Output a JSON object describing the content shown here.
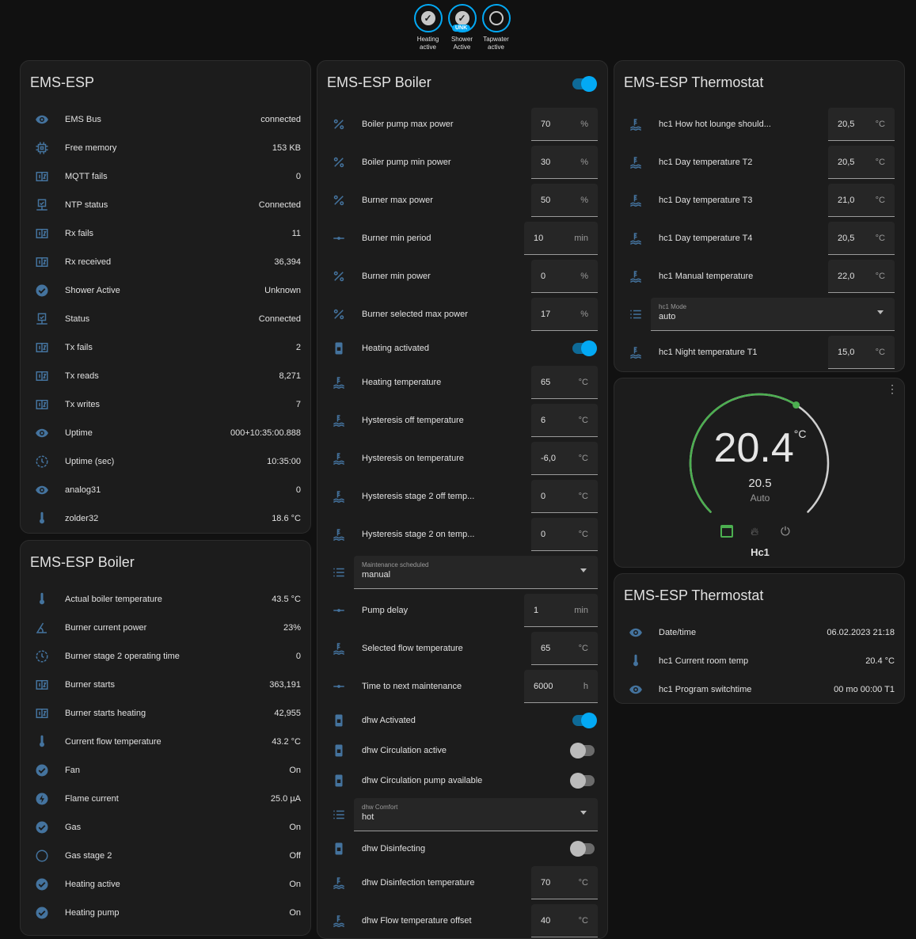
{
  "badges": [
    {
      "label": "Heating active",
      "state": "on"
    },
    {
      "label": "Shower Active",
      "state": "on",
      "tag": "UNK"
    },
    {
      "label": "Tapwater active",
      "state": "off"
    }
  ],
  "colors": {
    "accent": "#03a9f4",
    "icon": "#44739e",
    "thermo": "#4caf50"
  },
  "ems_esp": {
    "title": "EMS-ESP",
    "rows": [
      {
        "icon": "eye",
        "label": "EMS Bus",
        "value": "connected"
      },
      {
        "icon": "chip",
        "label": "Free memory",
        "value": "153 KB"
      },
      {
        "icon": "counter",
        "label": "MQTT fails",
        "value": "0"
      },
      {
        "icon": "monitor",
        "label": "NTP status",
        "value": "Connected"
      },
      {
        "icon": "counter",
        "label": "Rx fails",
        "value": "11"
      },
      {
        "icon": "counter",
        "label": "Rx received",
        "value": "36,394"
      },
      {
        "icon": "check-circle",
        "label": "Shower Active",
        "value": "Unknown"
      },
      {
        "icon": "monitor",
        "label": "Status",
        "value": "Connected"
      },
      {
        "icon": "counter",
        "label": "Tx fails",
        "value": "2"
      },
      {
        "icon": "counter",
        "label": "Tx reads",
        "value": "8,271"
      },
      {
        "icon": "counter",
        "label": "Tx writes",
        "value": "7"
      },
      {
        "icon": "eye",
        "label": "Uptime",
        "value": "000+10:35:00.888"
      },
      {
        "icon": "clock",
        "label": "Uptime (sec)",
        "value": "10:35:00"
      },
      {
        "icon": "eye",
        "label": "analog31",
        "value": "0"
      },
      {
        "icon": "thermometer",
        "label": "zolder32",
        "value": "18.6 °C"
      }
    ]
  },
  "boiler_sensors": {
    "title": "EMS-ESP Boiler",
    "rows": [
      {
        "icon": "thermometer",
        "label": "Actual boiler temperature",
        "value": "43.5 °C"
      },
      {
        "icon": "angle",
        "label": "Burner current power",
        "value": "23%"
      },
      {
        "icon": "clock",
        "label": "Burner stage 2 operating time",
        "value": "0"
      },
      {
        "icon": "counter",
        "label": "Burner starts",
        "value": "363,191"
      },
      {
        "icon": "counter",
        "label": "Burner starts heating",
        "value": "42,955"
      },
      {
        "icon": "thermometer",
        "label": "Current flow temperature",
        "value": "43.2 °C"
      },
      {
        "icon": "check-circle",
        "label": "Fan",
        "value": "On"
      },
      {
        "icon": "flash",
        "label": "Flame current",
        "value": "25.0 µA"
      },
      {
        "icon": "check-circle",
        "label": "Gas",
        "value": "On"
      },
      {
        "icon": "circle-outline",
        "label": "Gas stage 2",
        "value": "Off"
      },
      {
        "icon": "check-circle",
        "label": "Heating active",
        "value": "On"
      },
      {
        "icon": "check-circle",
        "label": "Heating pump",
        "value": "On"
      }
    ]
  },
  "boiler_controls": {
    "title": "EMS-ESP Boiler",
    "header_toggle": true,
    "rows": [
      {
        "type": "number",
        "icon": "percent",
        "label": "Boiler pump max power",
        "value": "70",
        "unit": "%"
      },
      {
        "type": "number",
        "icon": "percent",
        "label": "Boiler pump min power",
        "value": "30",
        "unit": "%"
      },
      {
        "type": "number",
        "icon": "percent",
        "label": "Burner max power",
        "value": "50",
        "unit": "%"
      },
      {
        "type": "number",
        "icon": "slider",
        "label": "Burner min period",
        "value": "10",
        "unit": "min"
      },
      {
        "type": "number",
        "icon": "percent",
        "label": "Burner min power",
        "value": "0",
        "unit": "%"
      },
      {
        "type": "number",
        "icon": "percent",
        "label": "Burner selected max power",
        "value": "17",
        "unit": "%"
      },
      {
        "type": "toggle",
        "icon": "boiler",
        "label": "Heating activated",
        "on": true
      },
      {
        "type": "number",
        "icon": "water-temp",
        "label": "Heating temperature",
        "value": "65",
        "unit": "°C"
      },
      {
        "type": "number",
        "icon": "water-temp",
        "label": "Hysteresis off temperature",
        "value": "6",
        "unit": "°C"
      },
      {
        "type": "number",
        "icon": "water-temp",
        "label": "Hysteresis on temperature",
        "value": "-6,0",
        "unit": "°C"
      },
      {
        "type": "number",
        "icon": "water-temp",
        "label": "Hysteresis stage 2 off temp...",
        "value": "0",
        "unit": "°C"
      },
      {
        "type": "number",
        "icon": "water-temp",
        "label": "Hysteresis stage 2 on temp...",
        "value": "0",
        "unit": "°C"
      },
      {
        "type": "select",
        "icon": "list",
        "label": "Maintenance scheduled",
        "value": "manual"
      },
      {
        "type": "number",
        "icon": "slider",
        "label": "Pump delay",
        "value": "1",
        "unit": "min"
      },
      {
        "type": "number",
        "icon": "water-temp",
        "label": "Selected flow temperature",
        "value": "65",
        "unit": "°C"
      },
      {
        "type": "number",
        "icon": "slider",
        "label": "Time to next maintenance",
        "value": "6000",
        "unit": "h"
      },
      {
        "type": "toggle",
        "icon": "boiler",
        "label": "dhw Activated",
        "on": true
      },
      {
        "type": "toggle",
        "icon": "boiler",
        "label": "dhw Circulation active",
        "on": false
      },
      {
        "type": "toggle",
        "icon": "boiler",
        "label": "dhw Circulation pump available",
        "on": false
      },
      {
        "type": "select",
        "icon": "list",
        "label": "dhw Comfort",
        "value": "hot"
      },
      {
        "type": "toggle",
        "icon": "boiler",
        "label": "dhw Disinfecting",
        "on": false
      },
      {
        "type": "number",
        "icon": "water-temp",
        "label": "dhw Disinfection temperature",
        "value": "70",
        "unit": "°C"
      },
      {
        "type": "number",
        "icon": "water-temp",
        "label": "dhw Flow temperature offset",
        "value": "40",
        "unit": "°C"
      }
    ]
  },
  "thermostat_controls": {
    "title": "EMS-ESP Thermostat",
    "rows": [
      {
        "type": "number",
        "icon": "water-temp",
        "label": "hc1 How hot lounge should...",
        "value": "20,5",
        "unit": "°C"
      },
      {
        "type": "number",
        "icon": "water-temp",
        "label": "hc1 Day temperature T2",
        "value": "20,5",
        "unit": "°C"
      },
      {
        "type": "number",
        "icon": "water-temp",
        "label": "hc1 Day temperature T3",
        "value": "21,0",
        "unit": "°C"
      },
      {
        "type": "number",
        "icon": "water-temp",
        "label": "hc1 Day temperature T4",
        "value": "20,5",
        "unit": "°C"
      },
      {
        "type": "number",
        "icon": "water-temp",
        "label": "hc1 Manual temperature",
        "value": "22,0",
        "unit": "°C"
      },
      {
        "type": "select",
        "icon": "list",
        "label": "hc1 Mode",
        "value": "auto"
      },
      {
        "type": "number",
        "icon": "water-temp",
        "label": "hc1 Night temperature T1",
        "value": "15,0",
        "unit": "°C"
      }
    ]
  },
  "thermostat": {
    "current": "20.4",
    "unit": "°C",
    "target": "20.5",
    "mode": "Auto",
    "name": "Hc1",
    "min": 5,
    "max": 30,
    "target_value": 20.5,
    "modes": [
      "auto",
      "heat",
      "off"
    ],
    "active_mode": "auto"
  },
  "thermostat_sensors": {
    "title": "EMS-ESP Thermostat",
    "rows": [
      {
        "icon": "eye",
        "label": "Date/time",
        "value": "06.02.2023 21:18"
      },
      {
        "icon": "thermometer",
        "label": "hc1 Current room temp",
        "value": "20.4 °C"
      },
      {
        "icon": "eye",
        "label": "hc1 Program switchtime",
        "value": "00 mo 00:00 T1"
      }
    ]
  }
}
